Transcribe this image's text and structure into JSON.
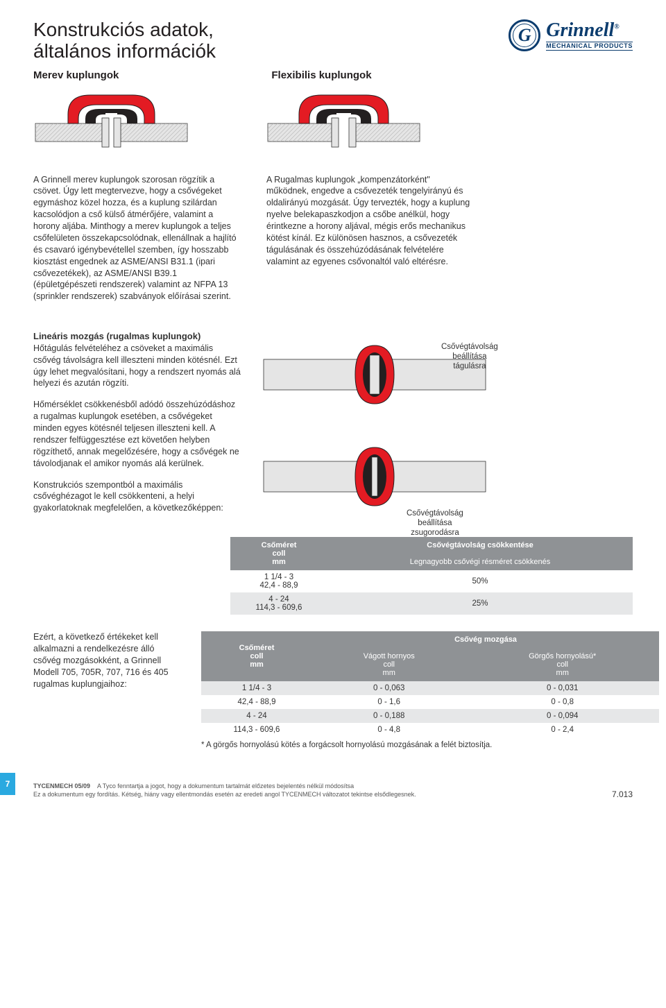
{
  "page": {
    "title_line1": "Konstrukciós adatok,",
    "title_line2": "általános információk",
    "tab_number": "7",
    "footer_code": "TYCENMECH 05/09",
    "footer_line1": "A Tyco fenntartja a jogot, hogy a dokumentum tartalmát előzetes bejelentés nélkül módosítsa",
    "footer_line2": "Ez a dokumentum egy fordítás. Kétség, hiány vagy ellentmondás esetén az eredeti angol TYCENMECH változatot tekintse elsődlegesnek.",
    "footer_page": "7.013"
  },
  "logo": {
    "brand": "Grinnell",
    "sub": "MECHANICAL PRODUCTS",
    "letter": "G"
  },
  "subheads": {
    "rigid": "Merev kuplungok",
    "flex": "Flexibilis kuplungok"
  },
  "coupling_svg": {
    "red": "#e31b23",
    "black": "#231f20",
    "pipe": "#e5e5e5",
    "stroke": "#333"
  },
  "col1": "A Grinnell merev kuplungok szorosan rögzítik a csövet. Úgy lett megtervezve, hogy a csővégeket egymáshoz közel hozza, és a kuplung szilárdan kacsolódjon a cső külső átmérőjére, valamint a horony aljába. Minthogy a merev kuplungok a teljes csőfelületen összekapcsolódnak, ellenállnak a hajlító és csavaró igénybevétellel szemben, így hosszabb kiosztást engednek az ASME/ANSI B31.1 (ipari csővezetékek), az ASME/ANSI B39.1 (épületgépészeti rendszerek) valamint az NFPA 13 (sprinkler rendszerek) szabványok előírásai szerint.",
  "col2": "A Rugalmas kuplungok „kompenzátorként\" működnek, engedve a csővezeték tengelyirányú és oldalirányú mozgását. Úgy tervezték, hogy a kuplung nyelve belekapaszkodjon a csőbe anélkül, hogy érintkezne a horony aljával, mégis erős mechanikus kötést kínál. Ez különösen hasznos, a csővezeték tágulásának és összehúzódásának felvételére valamint az egyenes csővonaltól való eltérésre.",
  "linear": {
    "heading": "Lineáris mozgás (rugalmas kuplungok)",
    "p1": "Hőtágulás felvételéhez a csöveket a maximális csővég távolságra kell illeszteni minden kötésnél. Ezt úgy lehet megvalósítani, hogy a rendszert nyomás alá helyezi és azután rögzíti.",
    "p2": "Hőmérséklet csökkenésből adódó összehúzódáshoz a rugalmas kuplungok esetében, a csővégeket minden egyes kötésnél teljesen illeszteni kell. A rendszer felfüggesztése ezt követően helyben rögzíthető, annak megelőzésére, hogy a csővégek ne távolodjanak el amikor nyomás alá kerülnek.",
    "p3": "Konstrukciós szempontból a maximális csővéghézagot le kell csökkenteni, a helyi gyakorlatoknak megfelelően, a következőképpen:",
    "label_expand": "Csővégtávolság\nbeállítása\ntágulásra",
    "label_shrink": "Csővégtávolság\nbeállítása\nzsugorodásra"
  },
  "table1": {
    "title": "Csővégtávolság csökkentése",
    "h_size": "Csőméret",
    "h_size_u1": "coll",
    "h_size_u2": "mm",
    "h_reduction": "Legnagyobb csővégi résméret csökkenés",
    "rows": [
      {
        "size_in": "1 1/4 - 3",
        "size_mm": "42,4 - 88,9",
        "reduction": "50%"
      },
      {
        "size_in": "4 - 24",
        "size_mm": "114,3 - 609,6",
        "reduction": "25%"
      }
    ]
  },
  "bottom_text": "Ezért, a következő értékeket kell alkalmazni a rendelkezésre álló csővég mozgásokként, a Grinnell Modell 705, 705R, 707, 716 és 405 rugalmas kuplungjaihoz:",
  "table2": {
    "title": "Csővég mozgása",
    "h_size": "Csőméret",
    "h_cut": "Vágott hornyos",
    "h_roll": "Görgős hornyolású*",
    "u_in": "coll",
    "u_mm": "mm",
    "rows": [
      {
        "a": "1 1/4 - 3",
        "b": "0 - 0,063",
        "c": "0 - 0,031"
      },
      {
        "a": "42,4 - 88,9",
        "b": "0 - 1,6",
        "c": "0 - 0,8"
      },
      {
        "a": "4 - 24",
        "b": "0 - 0,188",
        "c": "0 - 0,094"
      },
      {
        "a": "114,3 - 609,6",
        "b": "0 - 4,8",
        "c": "0 - 2,4"
      }
    ],
    "note": "* A görgős hornyolású kötés a forgácsolt hornyolású mozgásának a felét biztosítja."
  }
}
